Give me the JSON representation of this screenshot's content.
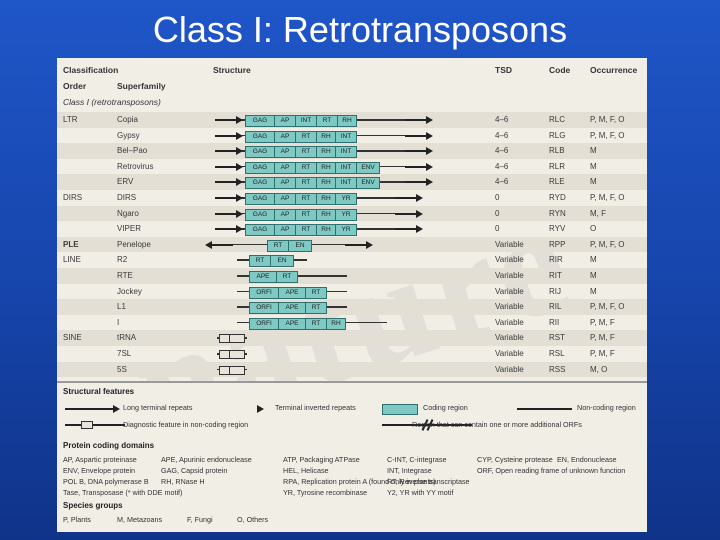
{
  "slide": {
    "title": "Class I: Retrotransposons"
  },
  "watermark": "nature",
  "header": {
    "classification": "Classification",
    "structure": "Structure",
    "tsd": "TSD",
    "code": "Code",
    "occurrence": "Occurrence",
    "order": "Order",
    "superfamily": "Superfamily",
    "class_label": "Class I (retrotransposons)"
  },
  "rows": [
    {
      "order": "LTR",
      "superfamily": "Copia",
      "tsd": "4–6",
      "code": "RLC",
      "occurrence": "P, M, F, O",
      "domains": [
        "GAG",
        "AP",
        "INT",
        "RT",
        "RH"
      ]
    },
    {
      "order": "",
      "superfamily": "Gypsy",
      "tsd": "4–6",
      "code": "RLG",
      "occurrence": "P, M, F, O",
      "domains": [
        "GAG",
        "AP",
        "RT",
        "RH",
        "INT"
      ]
    },
    {
      "order": "",
      "superfamily": "Bel–Pao",
      "tsd": "4–6",
      "code": "RLB",
      "occurrence": "M",
      "domains": [
        "GAG",
        "AP",
        "RT",
        "RH",
        "INT"
      ]
    },
    {
      "order": "",
      "superfamily": "Retrovirus",
      "tsd": "4–6",
      "code": "RLR",
      "occurrence": "M",
      "domains": [
        "GAG",
        "AP",
        "RT",
        "RH",
        "INT",
        "ENV"
      ]
    },
    {
      "order": "",
      "superfamily": "ERV",
      "tsd": "4–6",
      "code": "RLE",
      "occurrence": "M",
      "domains": [
        "GAG",
        "AP",
        "RT",
        "RH",
        "INT",
        "ENV"
      ]
    },
    {
      "order": "DIRS",
      "superfamily": "DIRS",
      "tsd": "0",
      "code": "RYD",
      "occurrence": "P, M, F, O",
      "domains": [
        "GAG",
        "AP",
        "RT",
        "RH",
        "YR"
      ]
    },
    {
      "order": "",
      "superfamily": "Ngaro",
      "tsd": "0",
      "code": "RYN",
      "occurrence": "M, F",
      "domains": [
        "GAG",
        "AP",
        "RT",
        "RH",
        "YR"
      ]
    },
    {
      "order": "",
      "superfamily": "VIPER",
      "tsd": "0",
      "code": "RYV",
      "occurrence": "O",
      "domains": [
        "GAG",
        "AP",
        "RT",
        "RH",
        "YR"
      ]
    },
    {
      "order": "PLE",
      "superfamily": "Penelope",
      "tsd": "Variable",
      "code": "RPP",
      "occurrence": "P, M, F, O",
      "domains": [
        "RT",
        "EN"
      ]
    },
    {
      "order": "LINE",
      "superfamily": "R2",
      "tsd": "Variable",
      "code": "RIR",
      "occurrence": "M",
      "domains": [
        "RT",
        "EN"
      ]
    },
    {
      "order": "",
      "superfamily": "RTE",
      "tsd": "Variable",
      "code": "RIT",
      "occurrence": "M",
      "domains": [
        "APE",
        "RT"
      ]
    },
    {
      "order": "",
      "superfamily": "Jockey",
      "tsd": "Variable",
      "code": "RIJ",
      "occurrence": "M",
      "domains": [
        "ORFI",
        "APE",
        "RT"
      ]
    },
    {
      "order": "",
      "superfamily": "L1",
      "tsd": "Variable",
      "code": "RIL",
      "occurrence": "P, M, F, O",
      "domains": [
        "ORFI",
        "APE",
        "RT"
      ]
    },
    {
      "order": "",
      "superfamily": "I",
      "tsd": "Variable",
      "code": "RII",
      "occurrence": "P, M, F",
      "domains": [
        "ORFI",
        "APE",
        "RT",
        "RH"
      ]
    },
    {
      "order": "SINE",
      "superfamily": "tRNA",
      "tsd": "Variable",
      "code": "RST",
      "occurrence": "P, M, F",
      "domains": []
    },
    {
      "order": "",
      "superfamily": "7SL",
      "tsd": "Variable",
      "code": "RSL",
      "occurrence": "P, M, F",
      "domains": []
    },
    {
      "order": "",
      "superfamily": "5S",
      "tsd": "Variable",
      "code": "RSS",
      "occurrence": "M, O",
      "domains": []
    }
  ],
  "legend": {
    "structural_title": "Structural features",
    "ltr": "Long terminal repeats",
    "tir": "Terminal inverted repeats",
    "coding": "Coding region",
    "noncoding": "Non-coding region",
    "diagnostic": "Diagnostic feature in non-coding region",
    "region": "Region that can contain one or more additional ORFs",
    "protein_title": "Protein coding domains",
    "domains_col1": [
      "AP, Aspartic proteinase",
      "ENV, Envelope protein",
      "POL B, DNA polymerase B",
      "Tase, Transposase (* with DDE motif)"
    ],
    "domains_col2": [
      "APE, Apurinic endonuclease",
      "GAG, Capsid protein",
      "RH, RNase H",
      ""
    ],
    "domains_col3": [
      "ATP, Packaging ATPase",
      "HEL, Helicase",
      "RPA, Replication protein A (found only in plants)",
      "YR, Tyrosine recombinase"
    ],
    "domains_col4": [
      "C-INT, C-integrase",
      "INT, Integrase",
      "RT, Reverse transcriptase",
      "Y2, YR with YY motif"
    ],
    "domains_col5": [
      "CYP, Cysteine protease",
      "ORF, Open reading frame of unknown function",
      "",
      ""
    ],
    "domains_col6": [
      "EN, Endonuclease",
      "",
      "",
      ""
    ],
    "species_title": "Species groups",
    "species": [
      "P, Plants",
      "M, Metazoans",
      "F, Fungi",
      "O, Others"
    ]
  },
  "colors": {
    "background": "#1644aa",
    "coding": "#7ec9c4"
  }
}
